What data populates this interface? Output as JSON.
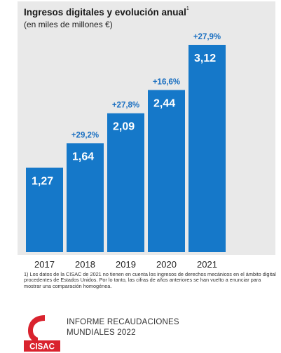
{
  "chart_data": {
    "type": "bar",
    "title": "Ingresos digitales y evolución anual",
    "title_note_marker": "1",
    "subtitle": "(en miles de millones €)",
    "categories": [
      "2017",
      "2018",
      "2019",
      "2020",
      "2021"
    ],
    "values": [
      1.27,
      1.64,
      2.09,
      2.44,
      3.12
    ],
    "value_labels": [
      "1,27",
      "1,64",
      "2,09",
      "2,44",
      "3,12"
    ],
    "growth_labels": [
      "",
      "+29,2%",
      "+27,8%",
      "+16,6%",
      "+27,9%"
    ],
    "ylim": [
      0,
      3.12
    ],
    "grid": false,
    "colors": {
      "bar": "#1578c9",
      "growth": "#1a6fc1",
      "panel": "#e9e9e9",
      "value_text": "#ffffff"
    }
  },
  "footnote": "1) Los datos de la CISAC de 2021 no tienen en cuenta los ingresos de derechos mecánicos en el ámbito digital procedentes de Estados Unidos. Por lo tanto, las cifras de años anteriores se han vuelto a enunciar para mostrar una comparación homogénea.",
  "logo": {
    "text": "CISAC",
    "color": "#d9232e"
  },
  "report": {
    "line1": "INFORME RECAUDACIONES",
    "line2": "MUNDIALES 2022"
  }
}
